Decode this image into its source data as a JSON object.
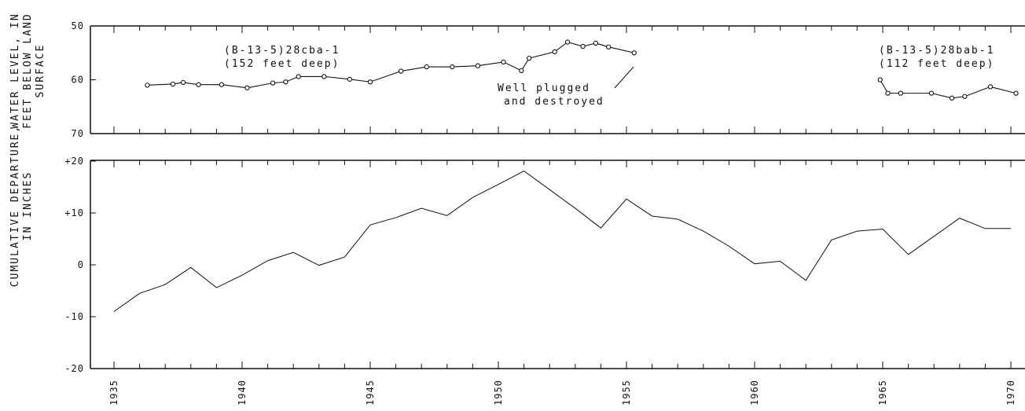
{
  "ylabel_top": "WATER LEVEL, IN FEET BELOW LAND SURFACE",
  "ylabel_top_lines": [
    "WATER LEVEL, IN",
    "FEET BELOW LAND",
    "SURFACE"
  ],
  "ylabel_bottom": "CUMULATIVE DEPARTURE, IN INCHES",
  "ylabel_bottom_lines": [
    "CUMULATIVE DEPARTURE,",
    "IN INCHES"
  ],
  "chart_data": [
    {
      "type": "line",
      "ylabel": "WATER LEVEL, IN FEET BELOW LAND SURFACE",
      "ylim": [
        70,
        50
      ],
      "yticks": [
        50,
        60,
        70
      ],
      "ytick_labels": [
        "50",
        "60",
        "70"
      ],
      "xlim": [
        1934.5,
        1970.5
      ],
      "grid": false,
      "series": [
        {
          "name": "(B-13-5)28cba-1",
          "name_lines": [
            "(B-13-5)28cba-1",
            "(152 feet deep)"
          ],
          "marker": "circle",
          "x": [
            1936.3,
            1937.3,
            1937.7,
            1938.3,
            1939.2,
            1940.2,
            1941.2,
            1941.7,
            1942.2,
            1943.2,
            1944.2,
            1945.0,
            1946.2,
            1947.2,
            1948.2,
            1949.2,
            1950.2,
            1950.9,
            1951.2,
            1952.2,
            1952.7,
            1953.3,
            1953.8,
            1954.3,
            1955.3
          ],
          "y": [
            61.0,
            60.8,
            60.5,
            60.9,
            60.9,
            61.5,
            60.6,
            60.4,
            59.4,
            59.4,
            59.9,
            60.4,
            58.4,
            57.6,
            57.6,
            57.4,
            56.7,
            58.3,
            56.0,
            54.8,
            53.0,
            53.8,
            53.2,
            53.9,
            55.0
          ]
        },
        {
          "name": "(B-13-5)28bab-1",
          "name_lines": [
            "(B-13-5)28bab-1",
            "(112 feet deep)"
          ],
          "marker": "circle",
          "x": [
            1964.9,
            1965.2,
            1965.7,
            1966.9,
            1967.7,
            1968.2,
            1969.2,
            1970.2
          ],
          "y": [
            60.0,
            62.5,
            62.5,
            62.5,
            63.4,
            63.1,
            61.3,
            62.5
          ]
        }
      ],
      "annotations": [
        {
          "text": "Well plugged",
          "text_lines": [
            "Well plugged",
            "and destroyed"
          ]
        }
      ]
    },
    {
      "type": "line",
      "ylabel": "CUMULATIVE DEPARTURE, IN INCHES",
      "ylim": [
        -20,
        20
      ],
      "yticks": [
        20,
        10,
        0,
        -10,
        -20
      ],
      "ytick_labels": [
        "+20",
        "+10",
        "0",
        "-10",
        "-20"
      ],
      "xlim": [
        1934.5,
        1970.5
      ],
      "x_tick_labels": [
        1935,
        1940,
        1945,
        1950,
        1955,
        1960,
        1965,
        1970
      ],
      "grid": false,
      "series": [
        {
          "x": [
            1935,
            1936,
            1937,
            1938,
            1939,
            1940,
            1941,
            1942,
            1943,
            1944,
            1945,
            1946,
            1947,
            1948,
            1949,
            1950,
            1951,
            1952,
            1953,
            1954,
            1955,
            1956,
            1957,
            1958,
            1959,
            1960,
            1961,
            1962,
            1963,
            1964,
            1965,
            1966,
            1967,
            1968,
            1969,
            1970
          ],
          "values": [
            -9,
            -5.5,
            -3.8,
            -0.5,
            -4.4,
            -2,
            0.8,
            2.4,
            -0.1,
            1.5,
            7.7,
            9.1,
            10.9,
            9.5,
            13,
            15.5,
            18.1,
            14.5,
            10.9,
            7.1,
            12.7,
            9.4,
            8.8,
            6.5,
            3.6,
            0.2,
            0.7,
            -3,
            4.8,
            6.5,
            6.9,
            2,
            5.5,
            9,
            7,
            7
          ]
        }
      ]
    }
  ]
}
